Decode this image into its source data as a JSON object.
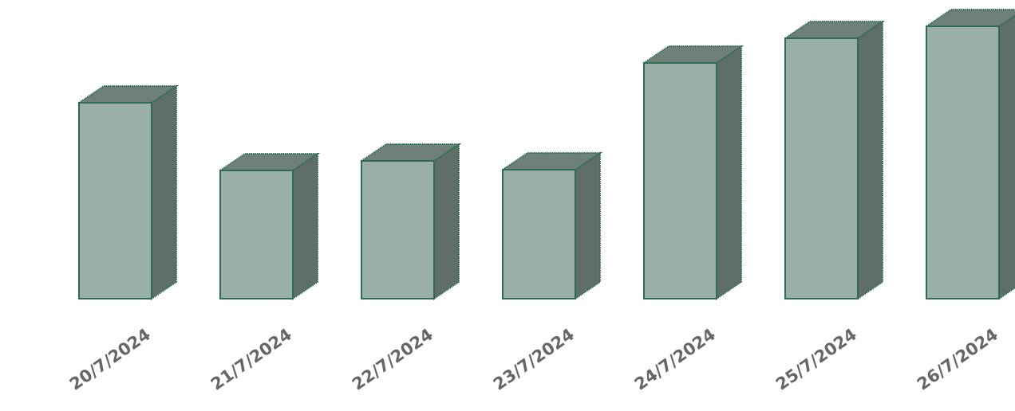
{
  "chart_data": {
    "type": "bar",
    "style": "3d",
    "categories": [
      "20/7/2024",
      "21/7/2024",
      "22/7/2024",
      "23/7/2024",
      "24/7/2024",
      "25/7/2024",
      "26/7/2024"
    ],
    "values": [
      246,
      161,
      173,
      162,
      296,
      327,
      342
    ],
    "title": "",
    "xlabel": "",
    "ylabel": "",
    "ylim": [
      0,
      350
    ],
    "grid": false,
    "colors": {
      "bar_front": "#9aafa7",
      "bar_top": "#6f8078",
      "bar_side": "#5f6f67",
      "bar_outline": "#2e6b52",
      "label": "#666666"
    }
  }
}
